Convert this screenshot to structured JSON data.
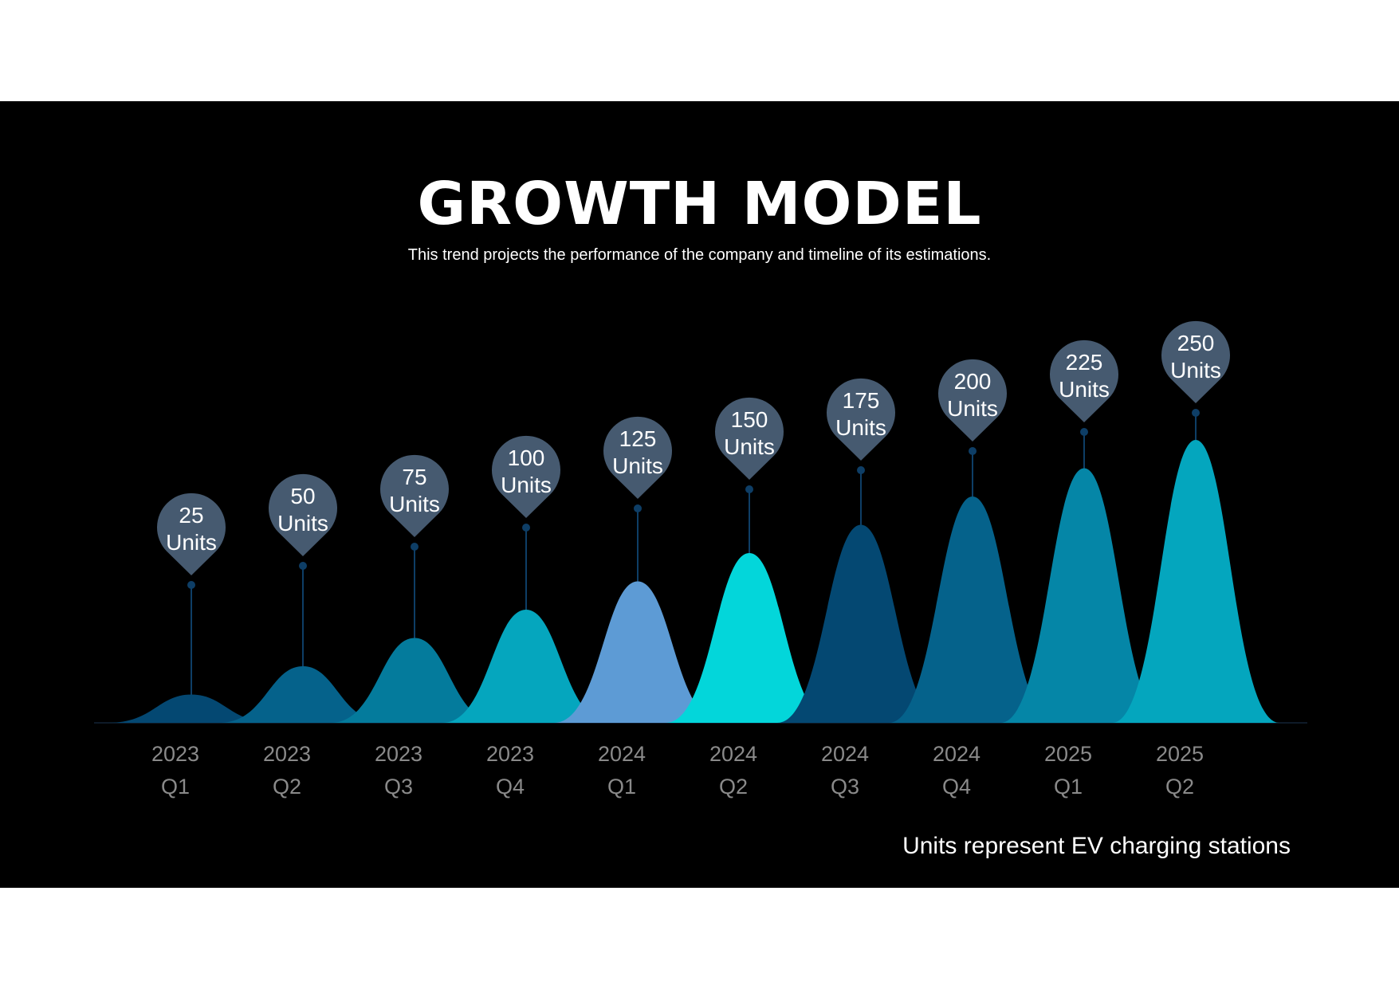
{
  "slide": {
    "title": "GROWTH MODEL",
    "subtitle": "This trend projects the performance of the company and timeline of its estimations.",
    "footnote": "Units represent EV charging stations",
    "background": "#000000"
  },
  "chart_data": {
    "type": "area",
    "title": "GROWTH MODEL",
    "xlabel": "",
    "ylabel": "",
    "categories": [
      {
        "year": "2023",
        "quarter": "Q1"
      },
      {
        "year": "2023",
        "quarter": "Q2"
      },
      {
        "year": "2023",
        "quarter": "Q3"
      },
      {
        "year": "2023",
        "quarter": "Q4"
      },
      {
        "year": "2024",
        "quarter": "Q1"
      },
      {
        "year": "2024",
        "quarter": "Q2"
      },
      {
        "year": "2024",
        "quarter": "Q3"
      },
      {
        "year": "2024",
        "quarter": "Q4"
      },
      {
        "year": "2025",
        "quarter": "Q1"
      },
      {
        "year": "2025",
        "quarter": "Q2"
      }
    ],
    "values": [
      25,
      50,
      75,
      100,
      125,
      150,
      175,
      200,
      225,
      250
    ],
    "value_labels": [
      {
        "value": "25",
        "unit": "Units"
      },
      {
        "value": "50",
        "unit": "Units"
      },
      {
        "value": "75",
        "unit": "Units"
      },
      {
        "value": "100",
        "unit": "Units"
      },
      {
        "value": "125",
        "unit": "Units"
      },
      {
        "value": "150",
        "unit": "Units"
      },
      {
        "value": "175",
        "unit": "Units"
      },
      {
        "value": "200",
        "unit": "Units"
      },
      {
        "value": "225",
        "unit": "Units"
      },
      {
        "value": "250",
        "unit": "Units"
      }
    ],
    "colors": [
      "#044872",
      "#05628b",
      "#047b9c",
      "#05a6be",
      "#5d9bd5",
      "#03d6da",
      "#044872",
      "#05628b",
      "#0586a7",
      "#04a6be"
    ],
    "marker_color": "#465a70",
    "stem_color": "#0e3e66",
    "axis_tick_color": "#8a8a8a",
    "ylim": [
      0,
      250
    ],
    "grid": false,
    "legend": "none"
  }
}
